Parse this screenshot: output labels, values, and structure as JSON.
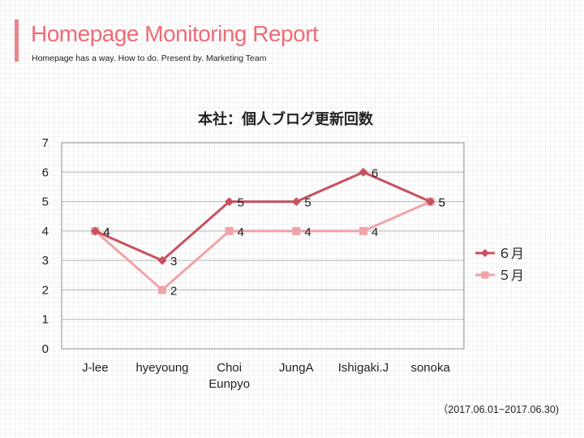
{
  "header": {
    "title": "Homepage Monitoring Report",
    "subtitle": "Homepage has a way. How to do. Present by. Marketing Team"
  },
  "footer": {
    "date_range": "（2017.06.01~2017.06.30)"
  },
  "colors": {
    "accent": "#e9868d",
    "title": "#ef6b77",
    "series_june": "#c8515f",
    "series_may": "#f0a3a7"
  },
  "chart_data": {
    "type": "line",
    "title": "本社：個人ブログ更新回数",
    "categories": [
      "J-lee",
      "hyeyoung",
      "Choi\nEunpyo",
      "JungA",
      "Ishigaki.J",
      "sonoka"
    ],
    "series": [
      {
        "name": "６月",
        "values": [
          4,
          3,
          5,
          5,
          6,
          5
        ],
        "color": "#c8515f",
        "marker": "diamond"
      },
      {
        "name": "５月",
        "values": [
          4,
          2,
          4,
          4,
          4,
          5
        ],
        "color": "#f0a3a7",
        "marker": "square"
      }
    ],
    "ylim": [
      0,
      7
    ],
    "yticks": [
      0,
      1,
      2,
      3,
      4,
      5,
      6,
      7
    ],
    "grid": true,
    "legend": "right",
    "data_labels": true
  }
}
